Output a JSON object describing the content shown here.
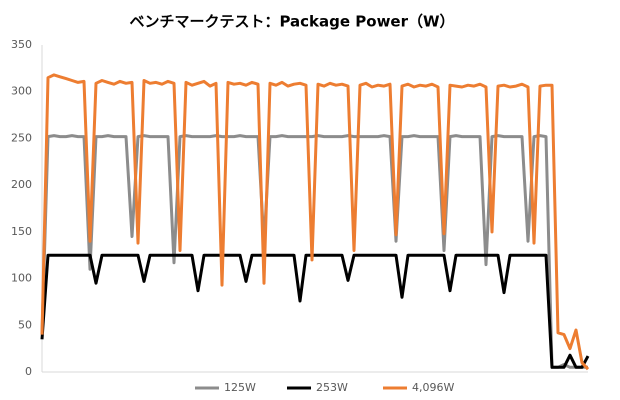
{
  "chart_data": {
    "type": "line",
    "title": "ベンチマークテスト：Package Power（W）",
    "categories": [
      null,
      null,
      null,
      null,
      null,
      null,
      null,
      null,
      null,
      null,
      null,
      null,
      null,
      null,
      null,
      null,
      null,
      null,
      null,
      null,
      null,
      null,
      null,
      null,
      null,
      null,
      null,
      null,
      null,
      null,
      null,
      null,
      null,
      null,
      null,
      null,
      null,
      null,
      null,
      null,
      null,
      null,
      null,
      null,
      null,
      null,
      null,
      null,
      null,
      null,
      null,
      null,
      null,
      null,
      null,
      null,
      null,
      null,
      null,
      null,
      null,
      null,
      null,
      null,
      null,
      null,
      null,
      null,
      null,
      null,
      null,
      null,
      null,
      null,
      null,
      null,
      null,
      null,
      null,
      null,
      null,
      null,
      null,
      null,
      null,
      null,
      null,
      null,
      null,
      null,
      null,
      null
    ],
    "series": [
      {
        "name": "125W",
        "color": "#8c8c8c",
        "values": [
          40,
          252,
          253,
          252,
          252,
          253,
          252,
          252,
          110,
          252,
          252,
          253,
          252,
          252,
          252,
          145,
          252,
          253,
          252,
          252,
          252,
          252,
          117,
          252,
          253,
          252,
          252,
          252,
          252,
          253,
          252,
          252,
          252,
          253,
          252,
          252,
          252,
          137,
          252,
          252,
          253,
          252,
          252,
          252,
          252,
          252,
          253,
          252,
          252,
          252,
          252,
          253,
          252,
          252,
          252,
          252,
          252,
          253,
          252,
          140,
          252,
          252,
          253,
          252,
          252,
          252,
          252,
          130,
          252,
          253,
          252,
          252,
          252,
          252,
          115,
          252,
          253,
          252,
          252,
          252,
          252,
          140,
          252,
          253,
          252,
          5,
          5,
          8,
          5,
          5,
          5,
          5
        ]
      },
      {
        "name": "253W",
        "color": "#000000",
        "values": [
          35,
          125,
          125,
          125,
          125,
          125,
          125,
          125,
          125,
          95,
          125,
          125,
          125,
          125,
          125,
          125,
          125,
          97,
          125,
          125,
          125,
          125,
          125,
          125,
          125,
          125,
          87,
          125,
          125,
          125,
          125,
          125,
          125,
          125,
          97,
          125,
          125,
          125,
          125,
          125,
          125,
          125,
          125,
          76,
          125,
          125,
          125,
          125,
          125,
          125,
          125,
          98,
          125,
          125,
          125,
          125,
          125,
          125,
          125,
          125,
          80,
          125,
          125,
          125,
          125,
          125,
          125,
          125,
          87,
          125,
          125,
          125,
          125,
          125,
          125,
          125,
          125,
          85,
          125,
          125,
          125,
          125,
          125,
          125,
          125,
          5,
          5,
          5,
          18,
          5,
          5,
          17
        ]
      },
      {
        "name": "4,096W",
        "color": "#ed7d31",
        "values": [
          40,
          315,
          318,
          316,
          314,
          312,
          310,
          311,
          140,
          309,
          312,
          310,
          308,
          311,
          309,
          310,
          138,
          312,
          309,
          310,
          308,
          311,
          309,
          130,
          310,
          307,
          309,
          311,
          306,
          309,
          93,
          310,
          308,
          309,
          307,
          310,
          308,
          95,
          309,
          307,
          310,
          306,
          308,
          309,
          307,
          120,
          308,
          306,
          309,
          307,
          308,
          306,
          130,
          307,
          309,
          305,
          307,
          306,
          308,
          147,
          306,
          308,
          305,
          307,
          306,
          308,
          305,
          148,
          307,
          306,
          305,
          307,
          306,
          308,
          305,
          150,
          306,
          307,
          305,
          306,
          308,
          305,
          138,
          306,
          307,
          307,
          42,
          40,
          25,
          45,
          10,
          3
        ]
      }
    ],
    "ylim": [
      0,
      350
    ],
    "yticks": [
      0,
      50,
      100,
      150,
      200,
      250,
      300,
      350
    ],
    "grid": false,
    "legend": "bottom"
  }
}
